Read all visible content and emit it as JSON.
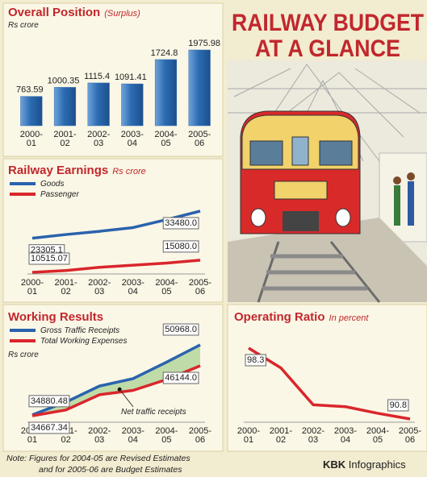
{
  "header": {
    "title_lines": [
      "RAILWAY BUDGET",
      "AT A GLANCE"
    ]
  },
  "chart_data": [
    {
      "type": "bar",
      "title": "Overall Position",
      "subtitle": "(Surplus)",
      "unit": "Rs crore",
      "categories": [
        "2000-01",
        "2001-02",
        "2002-03",
        "2003-04",
        "2004-05",
        "2005-06"
      ],
      "values": [
        763.59,
        1000.35,
        1115.4,
        1091.41,
        1724.8,
        1975.98
      ],
      "color": "#2c6cb3"
    },
    {
      "type": "line",
      "title": "Railway Earnings",
      "subtitle": "Rs crore",
      "categories": [
        "2000-01",
        "2001-02",
        "2002-03",
        "2003-04",
        "2004-05",
        "2005-06"
      ],
      "series": [
        {
          "name": "Goods",
          "color": "#2a62ad",
          "values": [
            23305.1,
            24700,
            25900,
            27300,
            30300,
            33480.0
          ],
          "value_labels": [
            "23305.1",
            null,
            null,
            null,
            null,
            "33480.0"
          ]
        },
        {
          "name": "Passenger",
          "color": "#d9262c",
          "values": [
            10515.07,
            11200,
            12400,
            13200,
            14000,
            15080.0
          ],
          "value_labels": [
            "10515.07",
            null,
            null,
            null,
            null,
            "15080.0"
          ]
        }
      ]
    },
    {
      "type": "line",
      "title": "Working Results",
      "unit": "Rs crore",
      "annotation": "Net traffic receipts",
      "fill_between": "#bfdca8",
      "categories": [
        "2000-01",
        "2001-02",
        "2002-03",
        "2003-04",
        "2004-05",
        "2005-06"
      ],
      "series": [
        {
          "name": "Gross Traffic Receipts",
          "color": "#2a62ad",
          "values": [
            34880.48,
            37800,
            41500,
            43200,
            47000,
            50968.0
          ],
          "value_labels": [
            "34880.48",
            null,
            null,
            null,
            null,
            "50968.0"
          ]
        },
        {
          "name": "Total Working Expenses",
          "color": "#d9262c",
          "values": [
            34667.34,
            36000,
            39500,
            40500,
            43000,
            46144.0
          ],
          "value_labels": [
            "34667.34",
            null,
            null,
            null,
            null,
            "46144.0"
          ]
        }
      ]
    },
    {
      "type": "line",
      "title": "Operating Ratio",
      "subtitle": "In percent",
      "categories": [
        "2000-01",
        "2001-02",
        "2002-03",
        "2003-04",
        "2004-05",
        "2005-06"
      ],
      "series": [
        {
          "color": "#d9262c",
          "values": [
            98.3,
            96.2,
            92.3,
            92.1,
            91.4,
            90.8
          ],
          "value_labels": [
            "98.3",
            null,
            null,
            null,
            null,
            "90.8"
          ]
        }
      ]
    }
  ],
  "note": [
    "Note: Figures for 2004-05 are Revised Estimates",
    "and for 2005-06 are Budget Estimates"
  ],
  "credit": {
    "brand": "KBK",
    "text": "Infographics"
  }
}
